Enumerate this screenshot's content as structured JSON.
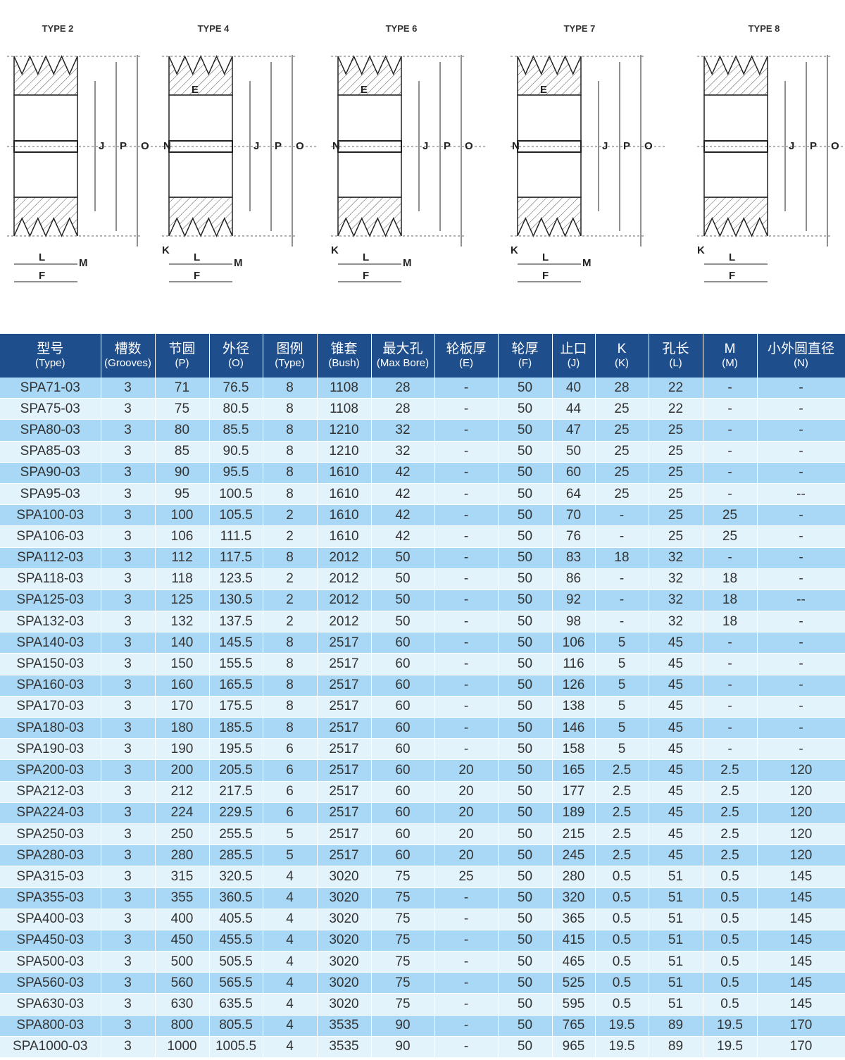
{
  "diagrams": [
    {
      "title": "TYPE 2",
      "labels": [
        "L",
        "M",
        "F",
        "J",
        "P",
        "O"
      ]
    },
    {
      "title": "TYPE 4",
      "labels": [
        "E",
        "N",
        "J",
        "P",
        "O",
        "K",
        "M",
        "F",
        "L"
      ]
    },
    {
      "title": "TYPE 6",
      "labels": [
        "E",
        "N",
        "J",
        "P",
        "O",
        "K",
        "L",
        "M",
        "F"
      ]
    },
    {
      "title": "TYPE 7",
      "labels": [
        "E",
        "N",
        "J",
        "P",
        "O",
        "K",
        "M",
        "F",
        "L"
      ]
    },
    {
      "title": "TYPE 8",
      "labels": [
        "J",
        "P",
        "O",
        "K",
        "L",
        "F"
      ]
    }
  ],
  "colors": {
    "header": "#1f4e8c",
    "row_odd": "#a8d8f5",
    "row_even": "#e3f3fc"
  },
  "table": {
    "headers": [
      {
        "cn": "型号",
        "en": "(Type)"
      },
      {
        "cn": "槽数",
        "en": "(Grooves)"
      },
      {
        "cn": "节圆",
        "en": "(P)"
      },
      {
        "cn": "外径",
        "en": "(O)"
      },
      {
        "cn": "图例",
        "en": "(Type)"
      },
      {
        "cn": "锥套",
        "en": "(Bush)"
      },
      {
        "cn": "最大孔",
        "en": "(Max Bore)"
      },
      {
        "cn": "轮板厚",
        "en": "(E)"
      },
      {
        "cn": "轮厚",
        "en": "(F)"
      },
      {
        "cn": "止口",
        "en": "(J)"
      },
      {
        "cn": "K",
        "en": "(K)"
      },
      {
        "cn": "孔长",
        "en": "(L)"
      },
      {
        "cn": "M",
        "en": "(M)"
      },
      {
        "cn": "小外圆直径",
        "en": "(N)"
      }
    ],
    "rows": [
      [
        "SPA71-03",
        "3",
        "71",
        "76.5",
        "8",
        "1108",
        "28",
        "-",
        "50",
        "40",
        "28",
        "22",
        "-",
        "-"
      ],
      [
        "SPA75-03",
        "3",
        "75",
        "80.5",
        "8",
        "1108",
        "28",
        "-",
        "50",
        "44",
        "25",
        "22",
        "-",
        "-"
      ],
      [
        "SPA80-03",
        "3",
        "80",
        "85.5",
        "8",
        "1210",
        "32",
        "-",
        "50",
        "47",
        "25",
        "25",
        "-",
        "-"
      ],
      [
        "SPA85-03",
        "3",
        "85",
        "90.5",
        "8",
        "1210",
        "32",
        "-",
        "50",
        "50",
        "25",
        "25",
        "-",
        "-"
      ],
      [
        "SPA90-03",
        "3",
        "90",
        "95.5",
        "8",
        "1610",
        "42",
        "-",
        "50",
        "60",
        "25",
        "25",
        "-",
        "-"
      ],
      [
        "SPA95-03",
        "3",
        "95",
        "100.5",
        "8",
        "1610",
        "42",
        "-",
        "50",
        "64",
        "25",
        "25",
        "-",
        "--"
      ],
      [
        "SPA100-03",
        "3",
        "100",
        "105.5",
        "2",
        "1610",
        "42",
        "-",
        "50",
        "70",
        "-",
        "25",
        "25",
        "-"
      ],
      [
        "SPA106-03",
        "3",
        "106",
        "111.5",
        "2",
        "1610",
        "42",
        "-",
        "50",
        "76",
        "-",
        "25",
        "25",
        "-"
      ],
      [
        "SPA112-03",
        "3",
        "112",
        "117.5",
        "8",
        "2012",
        "50",
        "-",
        "50",
        "83",
        "18",
        "32",
        "-",
        "-"
      ],
      [
        "SPA118-03",
        "3",
        "118",
        "123.5",
        "2",
        "2012",
        "50",
        "-",
        "50",
        "86",
        "-",
        "32",
        "18",
        "-"
      ],
      [
        "SPA125-03",
        "3",
        "125",
        "130.5",
        "2",
        "2012",
        "50",
        "-",
        "50",
        "92",
        "-",
        "32",
        "18",
        "--"
      ],
      [
        "SPA132-03",
        "3",
        "132",
        "137.5",
        "2",
        "2012",
        "50",
        "-",
        "50",
        "98",
        "-",
        "32",
        "18",
        "-"
      ],
      [
        "SPA140-03",
        "3",
        "140",
        "145.5",
        "8",
        "2517",
        "60",
        "-",
        "50",
        "106",
        "5",
        "45",
        "-",
        "-"
      ],
      [
        "SPA150-03",
        "3",
        "150",
        "155.5",
        "8",
        "2517",
        "60",
        "-",
        "50",
        "116",
        "5",
        "45",
        "-",
        "-"
      ],
      [
        "SPA160-03",
        "3",
        "160",
        "165.5",
        "8",
        "2517",
        "60",
        "-",
        "50",
        "126",
        "5",
        "45",
        "-",
        "-"
      ],
      [
        "SPA170-03",
        "3",
        "170",
        "175.5",
        "8",
        "2517",
        "60",
        "-",
        "50",
        "138",
        "5",
        "45",
        "-",
        "-"
      ],
      [
        "SPA180-03",
        "3",
        "180",
        "185.5",
        "8",
        "2517",
        "60",
        "-",
        "50",
        "146",
        "5",
        "45",
        "-",
        "-"
      ],
      [
        "SPA190-03",
        "3",
        "190",
        "195.5",
        "6",
        "2517",
        "60",
        "-",
        "50",
        "158",
        "5",
        "45",
        "-",
        "-"
      ],
      [
        "SPA200-03",
        "3",
        "200",
        "205.5",
        "6",
        "2517",
        "60",
        "20",
        "50",
        "165",
        "2.5",
        "45",
        "2.5",
        "120"
      ],
      [
        "SPA212-03",
        "3",
        "212",
        "217.5",
        "6",
        "2517",
        "60",
        "20",
        "50",
        "177",
        "2.5",
        "45",
        "2.5",
        "120"
      ],
      [
        "SPA224-03",
        "3",
        "224",
        "229.5",
        "6",
        "2517",
        "60",
        "20",
        "50",
        "189",
        "2.5",
        "45",
        "2.5",
        "120"
      ],
      [
        "SPA250-03",
        "3",
        "250",
        "255.5",
        "5",
        "2517",
        "60",
        "20",
        "50",
        "215",
        "2.5",
        "45",
        "2.5",
        "120"
      ],
      [
        "SPA280-03",
        "3",
        "280",
        "285.5",
        "5",
        "2517",
        "60",
        "20",
        "50",
        "245",
        "2.5",
        "45",
        "2.5",
        "120"
      ],
      [
        "SPA315-03",
        "3",
        "315",
        "320.5",
        "4",
        "3020",
        "75",
        "25",
        "50",
        "280",
        "0.5",
        "51",
        "0.5",
        "145"
      ],
      [
        "SPA355-03",
        "3",
        "355",
        "360.5",
        "4",
        "3020",
        "75",
        "-",
        "50",
        "320",
        "0.5",
        "51",
        "0.5",
        "145"
      ],
      [
        "SPA400-03",
        "3",
        "400",
        "405.5",
        "4",
        "3020",
        "75",
        "-",
        "50",
        "365",
        "0.5",
        "51",
        "0.5",
        "145"
      ],
      [
        "SPA450-03",
        "3",
        "450",
        "455.5",
        "4",
        "3020",
        "75",
        "-",
        "50",
        "415",
        "0.5",
        "51",
        "0.5",
        "145"
      ],
      [
        "SPA500-03",
        "3",
        "500",
        "505.5",
        "4",
        "3020",
        "75",
        "-",
        "50",
        "465",
        "0.5",
        "51",
        "0.5",
        "145"
      ],
      [
        "SPA560-03",
        "3",
        "560",
        "565.5",
        "4",
        "3020",
        "75",
        "-",
        "50",
        "525",
        "0.5",
        "51",
        "0.5",
        "145"
      ],
      [
        "SPA630-03",
        "3",
        "630",
        "635.5",
        "4",
        "3020",
        "75",
        "-",
        "50",
        "595",
        "0.5",
        "51",
        "0.5",
        "145"
      ],
      [
        "SPA800-03",
        "3",
        "800",
        "805.5",
        "4",
        "3535",
        "90",
        "-",
        "50",
        "765",
        "19.5",
        "89",
        "19.5",
        "170"
      ],
      [
        "SPA1000-03",
        "3",
        "1000",
        "1005.5",
        "4",
        "3535",
        "90",
        "-",
        "50",
        "965",
        "19.5",
        "89",
        "19.5",
        "170"
      ]
    ]
  }
}
